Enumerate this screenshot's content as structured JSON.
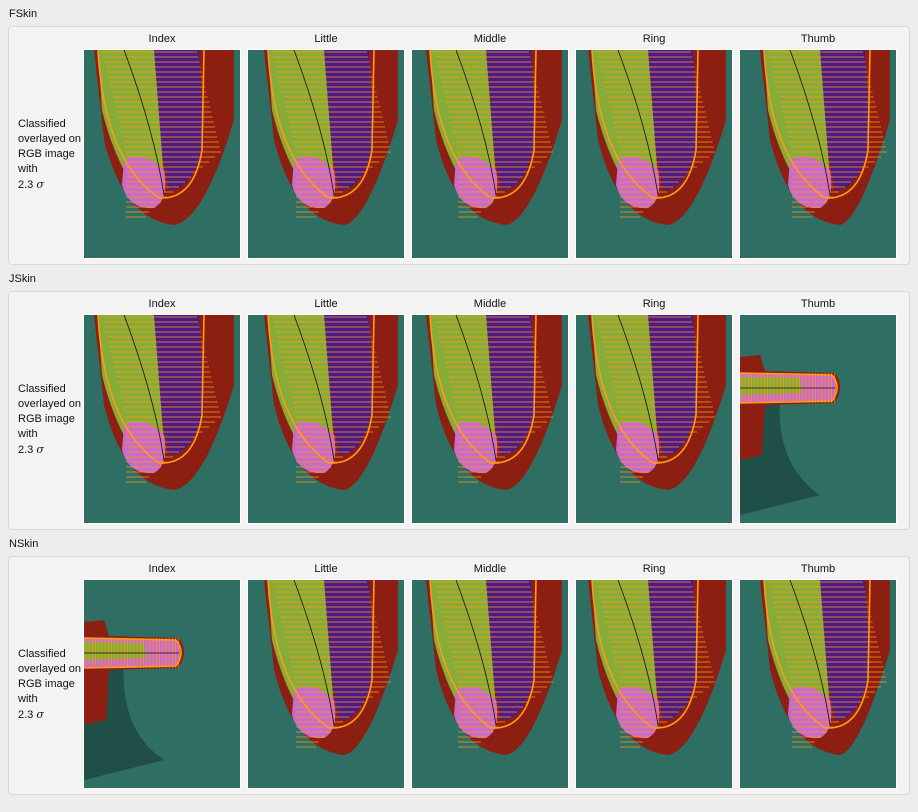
{
  "sections": [
    {
      "title": "FSkin",
      "row_label": [
        "Classified",
        "overlayed on",
        "RGB image",
        "with"
      ],
      "sigma_text": "2.3",
      "sigma_symbol": "σ",
      "cells": [
        {
          "label": "Index",
          "pose": "down"
        },
        {
          "label": "Little",
          "pose": "down"
        },
        {
          "label": "Middle",
          "pose": "down"
        },
        {
          "label": "Ring",
          "pose": "down"
        },
        {
          "label": "Thumb",
          "pose": "down"
        }
      ]
    },
    {
      "title": "JSkin",
      "row_label": [
        "Classified",
        "overlayed on",
        "RGB image",
        "with"
      ],
      "sigma_text": "2.3",
      "sigma_symbol": "σ",
      "cells": [
        {
          "label": "Index",
          "pose": "down"
        },
        {
          "label": "Little",
          "pose": "down"
        },
        {
          "label": "Middle",
          "pose": "down"
        },
        {
          "label": "Ring",
          "pose": "down"
        },
        {
          "label": "Thumb",
          "pose": "right"
        }
      ]
    },
    {
      "title": "NSkin",
      "row_label": [
        "Classified",
        "overlayed on",
        "RGB image",
        "with"
      ],
      "sigma_text": "2.3",
      "sigma_symbol": "σ",
      "cells": [
        {
          "label": "Index",
          "pose": "right"
        },
        {
          "label": "Little",
          "pose": "down"
        },
        {
          "label": "Middle",
          "pose": "down"
        },
        {
          "label": "Ring",
          "pose": "down"
        },
        {
          "label": "Thumb",
          "pose": "down"
        }
      ]
    }
  ],
  "colors": {
    "background": "#2f6e63",
    "shadow": "#1f4f47",
    "skin_red": "#8d1f12",
    "purple": "#4d1a86",
    "magenta": "#c86bc9",
    "green": "#86ad38",
    "orange": "#ff9a1a",
    "centerline": "#111111"
  }
}
